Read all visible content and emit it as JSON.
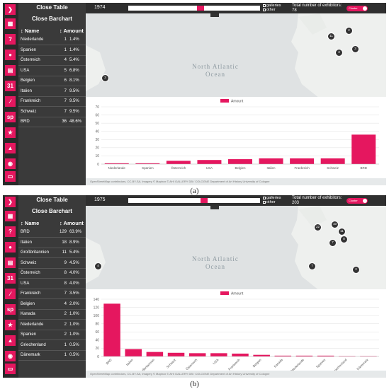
{
  "panels": [
    {
      "id": "a",
      "caption": "(a)",
      "close_table": "Close Table",
      "close_barchart": "Close Barchart",
      "col_name": "↕ Name",
      "col_amount": "↕ Amount",
      "year": "1974",
      "slider_fraction": 0.55,
      "galleries_label": "galleries",
      "other_label": "other",
      "total_label": "Total number of exhibitors: 78",
      "cluster_label": "Cluster",
      "ocean_label": "North Atlantic Ocean",
      "legend_label": "Amount",
      "footer_text": "OpenStreetMap contributors, CC-BY-SA, Imagery © Mapbox   © AHI GALLERY DB / COLOGNE   Department of Art History   University of Cologne",
      "rows": [
        {
          "name": "Niederlande",
          "count": "1",
          "pct": "1.4%"
        },
        {
          "name": "Spanien",
          "count": "1",
          "pct": "1.4%"
        },
        {
          "name": "Österreich",
          "count": "4",
          "pct": "5.4%"
        },
        {
          "name": "USA",
          "count": "5",
          "pct": "6.8%"
        },
        {
          "name": "Belgien",
          "count": "6",
          "pct": "8.1%"
        },
        {
          "name": "Italien",
          "count": "7",
          "pct": "9.5%"
        },
        {
          "name": "Frankreich",
          "count": "7",
          "pct": "9.5%"
        },
        {
          "name": "Schweiz",
          "count": "7",
          "pct": "9.5%"
        },
        {
          "name": "BRD",
          "count": "36",
          "pct": "48.6%"
        }
      ],
      "markers": [
        "3",
        "11",
        "2",
        "3",
        "3"
      ],
      "chart_data": {
        "type": "bar",
        "categories": [
          "Niederlande",
          "Spanien",
          "Österreich",
          "USA",
          "Belgien",
          "Italien",
          "Frankreich",
          "Schweiz",
          "BRD"
        ],
        "series": [
          {
            "name": "Amount",
            "values": [
              1,
              1,
              4,
              5,
              6,
              7,
              7,
              7,
              36
            ]
          }
        ],
        "ylim": [
          0,
          70
        ],
        "yticks": [
          0,
          10,
          20,
          30,
          40,
          50,
          60,
          70
        ],
        "grid": true,
        "legend_position": "top-center",
        "color": "#e5175f"
      }
    },
    {
      "id": "b",
      "caption": "(b)",
      "close_table": "Close Table",
      "close_barchart": "Close Barchart",
      "col_name": "↕ Name",
      "col_amount": "↕ Amount",
      "year": "1975",
      "slider_fraction": 0.58,
      "galleries_label": "galleries",
      "other_label": "other",
      "total_label": "Total number of exhibitors: 203",
      "cluster_label": "Cluster",
      "ocean_label": "North Atlantic Ocean",
      "legend_label": "Amount",
      "footer_text": "OpenStreetMap contributors, CC-BY-SA, Imagery © Mapbox   © AHI GALLERY DB / COLOGNE   Department of Art History   University of Cologne",
      "rows": [
        {
          "name": "BRD",
          "count": "129",
          "pct": "63.9%"
        },
        {
          "name": "Italien",
          "count": "18",
          "pct": "8.9%"
        },
        {
          "name": "Großbritannien",
          "count": "11",
          "pct": "5.4%"
        },
        {
          "name": "Schweiz",
          "count": "9",
          "pct": "4.5%"
        },
        {
          "name": "Österreich",
          "count": "8",
          "pct": "4.0%"
        },
        {
          "name": "USA",
          "count": "8",
          "pct": "4.0%"
        },
        {
          "name": "Frankreich",
          "count": "7",
          "pct": "3.5%"
        },
        {
          "name": "Belgien",
          "count": "4",
          "pct": "2.0%"
        },
        {
          "name": "Kanada",
          "count": "2",
          "pct": "1.0%"
        },
        {
          "name": "Niederlande",
          "count": "2",
          "pct": "1.0%"
        },
        {
          "name": "Spanien",
          "count": "2",
          "pct": "1.0%"
        },
        {
          "name": "Griechenland",
          "count": "1",
          "pct": "0.5%"
        },
        {
          "name": "Dänemark",
          "count": "1",
          "pct": "0.5%"
        }
      ],
      "markers": [
        "22",
        "10",
        "8",
        "7",
        "11",
        "4",
        "7",
        "2"
      ],
      "chart_data": {
        "type": "bar",
        "categories": [
          "BRD",
          "Italien",
          "Großbritannien",
          "Schweiz",
          "Österreich",
          "USA",
          "Frankreich",
          "Belgien",
          "Kanada",
          "Niederlande",
          "Spanien",
          "Griechenland",
          "Dänemark"
        ],
        "series": [
          {
            "name": "Amount",
            "values": [
              129,
              18,
              11,
              9,
              8,
              8,
              7,
              4,
              2,
              2,
              2,
              1,
              1
            ]
          }
        ],
        "ylim": [
          0,
          140
        ],
        "yticks": [
          0,
          20,
          40,
          60,
          80,
          100,
          120,
          140
        ],
        "grid": true,
        "legend_position": "top-center",
        "color": "#e5175f"
      }
    }
  ]
}
